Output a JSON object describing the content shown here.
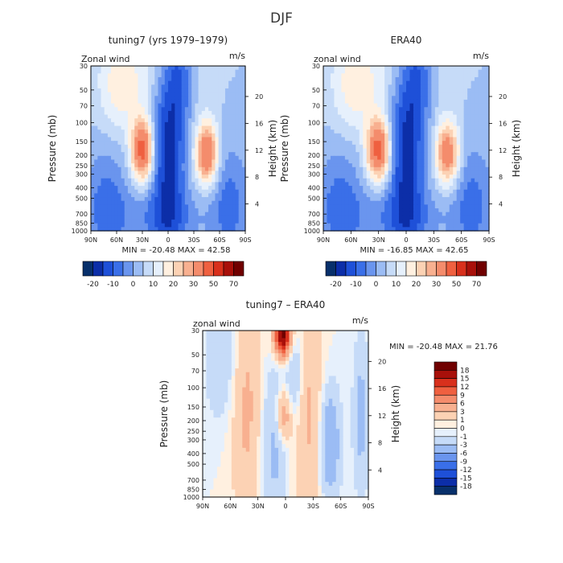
{
  "title": "DJF",
  "chart_data": [
    {
      "type": "heatmap",
      "title": "tuning7 (yrs 1979–1979)",
      "field_label": "Zonal wind",
      "units": "m/s",
      "ylabel": "Pressure (mb)",
      "ylabel_right": "Height (km)",
      "xticks": [
        "90N",
        "60N",
        "30N",
        "0",
        "30S",
        "60S",
        "90S"
      ],
      "yticks": [
        "30",
        "50",
        "70",
        "100",
        "150",
        "200",
        "250",
        "300",
        "400",
        "500",
        "700",
        "850",
        "1000"
      ],
      "yticks_right": [
        "4",
        "8",
        "12",
        "16",
        "20"
      ],
      "ylim": [
        1000,
        30
      ],
      "y_scale": "log",
      "stats": "MIN = -20.48   MAX = 42.58",
      "min": -20.48,
      "max": 42.58,
      "colorbar": {
        "orientation": "horizontal",
        "ticks": [
          "-20",
          "-10",
          "0",
          "10",
          "20",
          "30",
          "50",
          "70"
        ],
        "levels": [
          -20,
          -15,
          -10,
          -5,
          0,
          5,
          10,
          15,
          20,
          25,
          30,
          40,
          50,
          60,
          70
        ],
        "colors": [
          "#08306b",
          "#0c2ea8",
          "#1e50d8",
          "#3a6fe8",
          "#6a95ee",
          "#9bbcf4",
          "#c6dbf8",
          "#e6f0fc",
          "#fff0e0",
          "#fcd2b4",
          "#f8b090",
          "#f48c6c",
          "#ef6040",
          "#d8301c",
          "#a8100a",
          "#700000"
        ]
      }
    },
    {
      "type": "heatmap",
      "title": "ERA40",
      "field_label": "zonal wind",
      "units": "m/s",
      "ylabel": "Pressure (mb)",
      "ylabel_right": "Height (km)",
      "xticks": [
        "90N",
        "60N",
        "30N",
        "0",
        "30S",
        "60S",
        "90S"
      ],
      "yticks": [
        "30",
        "50",
        "70",
        "100",
        "150",
        "200",
        "250",
        "300",
        "400",
        "500",
        "700",
        "850",
        "1000"
      ],
      "yticks_right": [
        "4",
        "8",
        "12",
        "16",
        "20"
      ],
      "ylim": [
        1000,
        30
      ],
      "y_scale": "log",
      "stats": "MIN = -16.85   MAX = 42.65",
      "min": -16.85,
      "max": 42.65,
      "colorbar": {
        "orientation": "horizontal",
        "ticks": [
          "-20",
          "-10",
          "0",
          "10",
          "20",
          "30",
          "50",
          "70"
        ],
        "levels": [
          -20,
          -15,
          -10,
          -5,
          0,
          5,
          10,
          15,
          20,
          25,
          30,
          40,
          50,
          60,
          70
        ],
        "colors": [
          "#08306b",
          "#0c2ea8",
          "#1e50d8",
          "#3a6fe8",
          "#6a95ee",
          "#9bbcf4",
          "#c6dbf8",
          "#e6f0fc",
          "#fff0e0",
          "#fcd2b4",
          "#f8b090",
          "#f48c6c",
          "#ef6040",
          "#d8301c",
          "#a8100a",
          "#700000"
        ]
      }
    },
    {
      "type": "heatmap",
      "title": "tuning7 – ERA40",
      "field_label": "zonal wind",
      "units": "m/s",
      "ylabel": "Pressure (mb)",
      "ylabel_right": "Height (km)",
      "xticks": [
        "90N",
        "60N",
        "30N",
        "0",
        "30S",
        "60S",
        "90S"
      ],
      "yticks": [
        "30",
        "50",
        "70",
        "100",
        "150",
        "200",
        "250",
        "300",
        "400",
        "500",
        "700",
        "850",
        "1000"
      ],
      "yticks_right": [
        "4",
        "8",
        "12",
        "16",
        "20"
      ],
      "ylim": [
        1000,
        30
      ],
      "y_scale": "log",
      "stats": "MIN = -20.48   MAX =  21.76",
      "min": -20.48,
      "max": 21.76,
      "colorbar": {
        "orientation": "vertical",
        "ticks": [
          "18",
          "15",
          "12",
          "9",
          "6",
          "3",
          "1",
          "0",
          "-1",
          "-3",
          "-6",
          "-9",
          "-12",
          "-15",
          "-18"
        ],
        "levels": [
          -18,
          -15,
          -12,
          -9,
          -6,
          -3,
          -1,
          0,
          1,
          3,
          6,
          9,
          12,
          15,
          18
        ],
        "colors": [
          "#08306b",
          "#0c2ea8",
          "#1e50d8",
          "#3a6fe8",
          "#6a95ee",
          "#9bbcf4",
          "#c6dbf8",
          "#e6f0fc",
          "#fff0e0",
          "#fcd2b4",
          "#f8b090",
          "#f48c6c",
          "#ef6040",
          "#d8301c",
          "#a8100a",
          "#700000"
        ]
      }
    }
  ]
}
